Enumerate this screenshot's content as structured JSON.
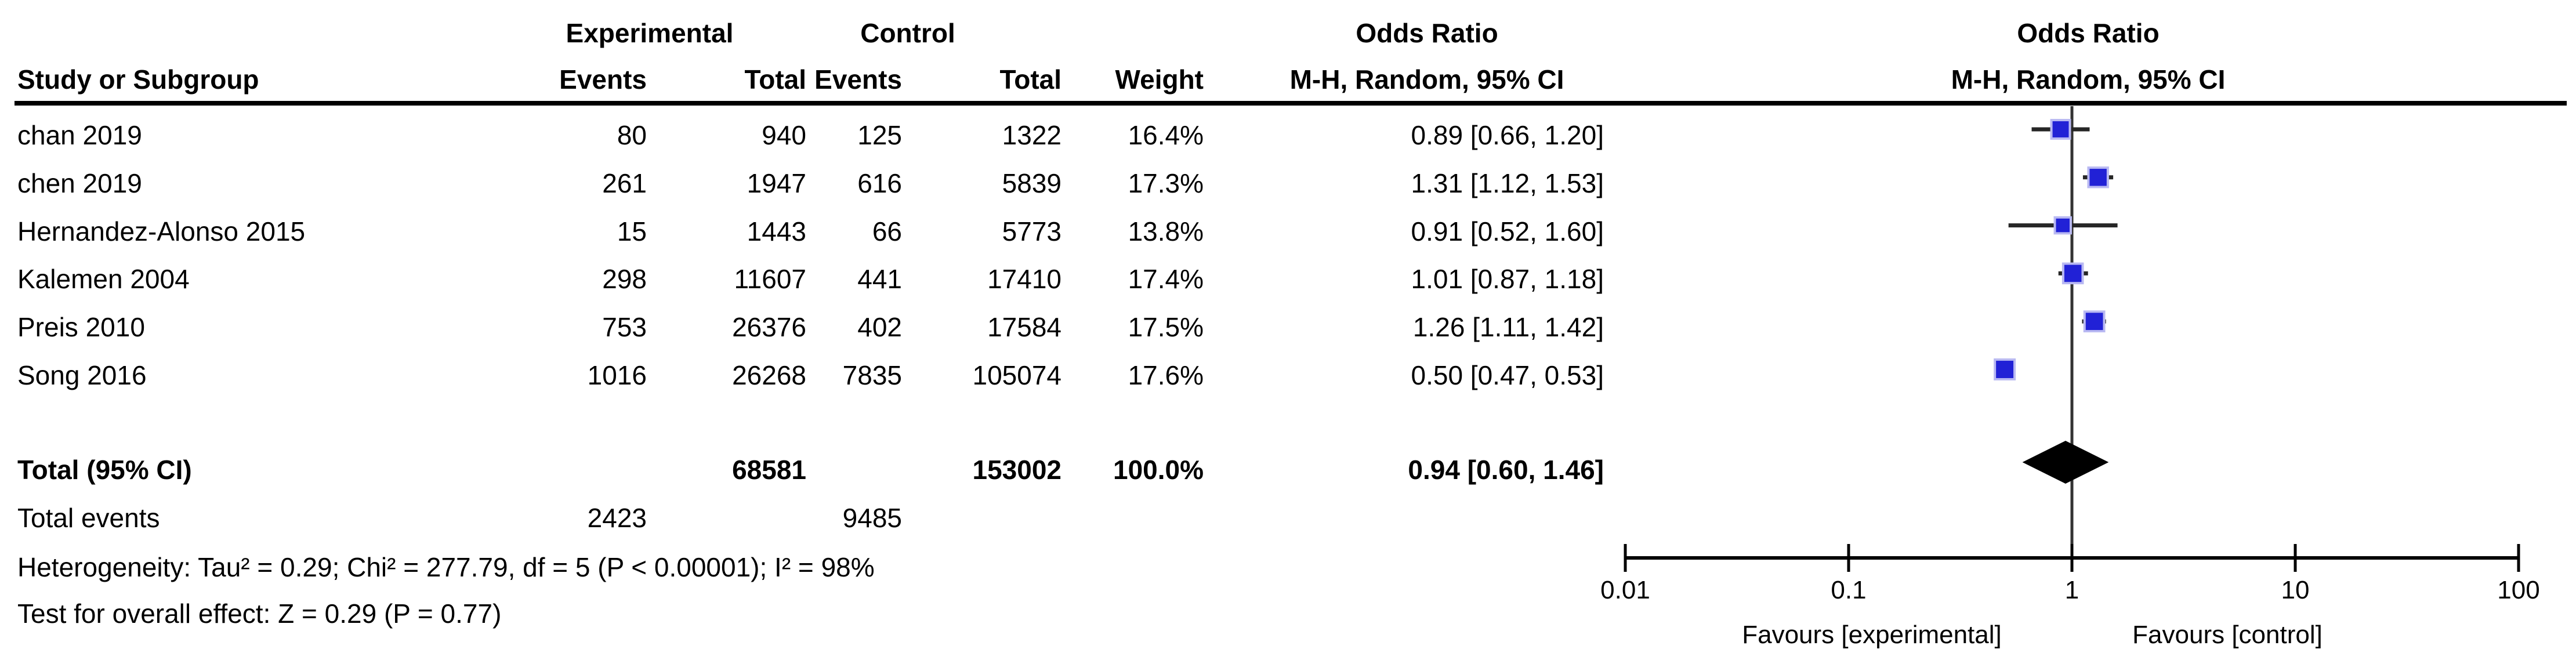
{
  "table": {
    "col_headers": {
      "study": "Study or Subgroup",
      "exp_group": "Experimental",
      "ctrl_group": "Control",
      "events": "Events",
      "total": "Total",
      "weight": "Weight",
      "or_col_title": "Odds Ratio",
      "or_col_sub": "M-H, Random, 95% CI"
    },
    "plot_header": {
      "title": "Odds Ratio",
      "sub": "M-H, Random, 95% CI"
    }
  },
  "chart_data": {
    "type": "scatter",
    "variant": "forest-plot-meta-analysis",
    "effect_measure": "Odds Ratio",
    "method": "M-H, Random, 95% CI",
    "x_scale": "log10",
    "x_ticks": [
      0.01,
      0.1,
      1,
      10,
      100
    ],
    "x_tick_labels": [
      "0.01",
      "0.1",
      "1",
      "10",
      "100"
    ],
    "favours_left": "Favours [experimental]",
    "favours_right": "Favours [control]",
    "studies": [
      {
        "name": "chan 2019",
        "exp_events": "80",
        "exp_total": "940",
        "ctrl_events": "125",
        "ctrl_total": "1322",
        "weight": "16.4%",
        "weight_pct": 16.4,
        "or": 0.89,
        "ci_low": 0.66,
        "ci_high": 1.2,
        "or_text": "0.89 [0.66, 1.20]"
      },
      {
        "name": "chen 2019",
        "exp_events": "261",
        "exp_total": "1947",
        "ctrl_events": "616",
        "ctrl_total": "5839",
        "weight": "17.3%",
        "weight_pct": 17.3,
        "or": 1.31,
        "ci_low": 1.12,
        "ci_high": 1.53,
        "or_text": "1.31 [1.12, 1.53]"
      },
      {
        "name": "Hernandez-Alonso 2015",
        "exp_events": "15",
        "exp_total": "1443",
        "ctrl_events": "66",
        "ctrl_total": "5773",
        "weight": "13.8%",
        "weight_pct": 13.8,
        "or": 0.91,
        "ci_low": 0.52,
        "ci_high": 1.6,
        "or_text": "0.91 [0.52, 1.60]"
      },
      {
        "name": "Kalemen 2004",
        "exp_events": "298",
        "exp_total": "11607",
        "ctrl_events": "441",
        "ctrl_total": "17410",
        "weight": "17.4%",
        "weight_pct": 17.4,
        "or": 1.01,
        "ci_low": 0.87,
        "ci_high": 1.18,
        "or_text": "1.01 [0.87, 1.18]"
      },
      {
        "name": "Preis 2010",
        "exp_events": "753",
        "exp_total": "26376",
        "ctrl_events": "402",
        "ctrl_total": "17584",
        "weight": "17.5%",
        "weight_pct": 17.5,
        "or": 1.26,
        "ci_low": 1.11,
        "ci_high": 1.42,
        "or_text": "1.26 [1.11, 1.42]"
      },
      {
        "name": "Song 2016",
        "exp_events": "1016",
        "exp_total": "26268",
        "ctrl_events": "7835",
        "ctrl_total": "105074",
        "weight": "17.6%",
        "weight_pct": 17.6,
        "or": 0.5,
        "ci_low": 0.47,
        "ci_high": 0.53,
        "or_text": "0.50 [0.47, 0.53]"
      }
    ],
    "total": {
      "label": "Total (95% CI)",
      "exp_total": "68581",
      "ctrl_total": "153002",
      "weight": "100.0%",
      "or": 0.94,
      "ci_low": 0.6,
      "ci_high": 1.46,
      "or_text": "0.94 [0.60, 1.46]"
    },
    "total_events": {
      "label": "Total events",
      "exp": "2423",
      "ctrl": "9485"
    },
    "heterogeneity": "Heterogeneity: Tau² = 0.29; Chi² = 277.79, df = 5 (P < 0.00001); I² = 98%",
    "overall_effect": "Test for overall effect: Z = 0.29 (P = 0.77)",
    "colors": {
      "square": "#2121d6",
      "square_halo": "#b9b9f2",
      "diamond": "#000000",
      "ci_line": "#262626",
      "axis": "#000000",
      "no_effect_line": "#333333"
    }
  }
}
